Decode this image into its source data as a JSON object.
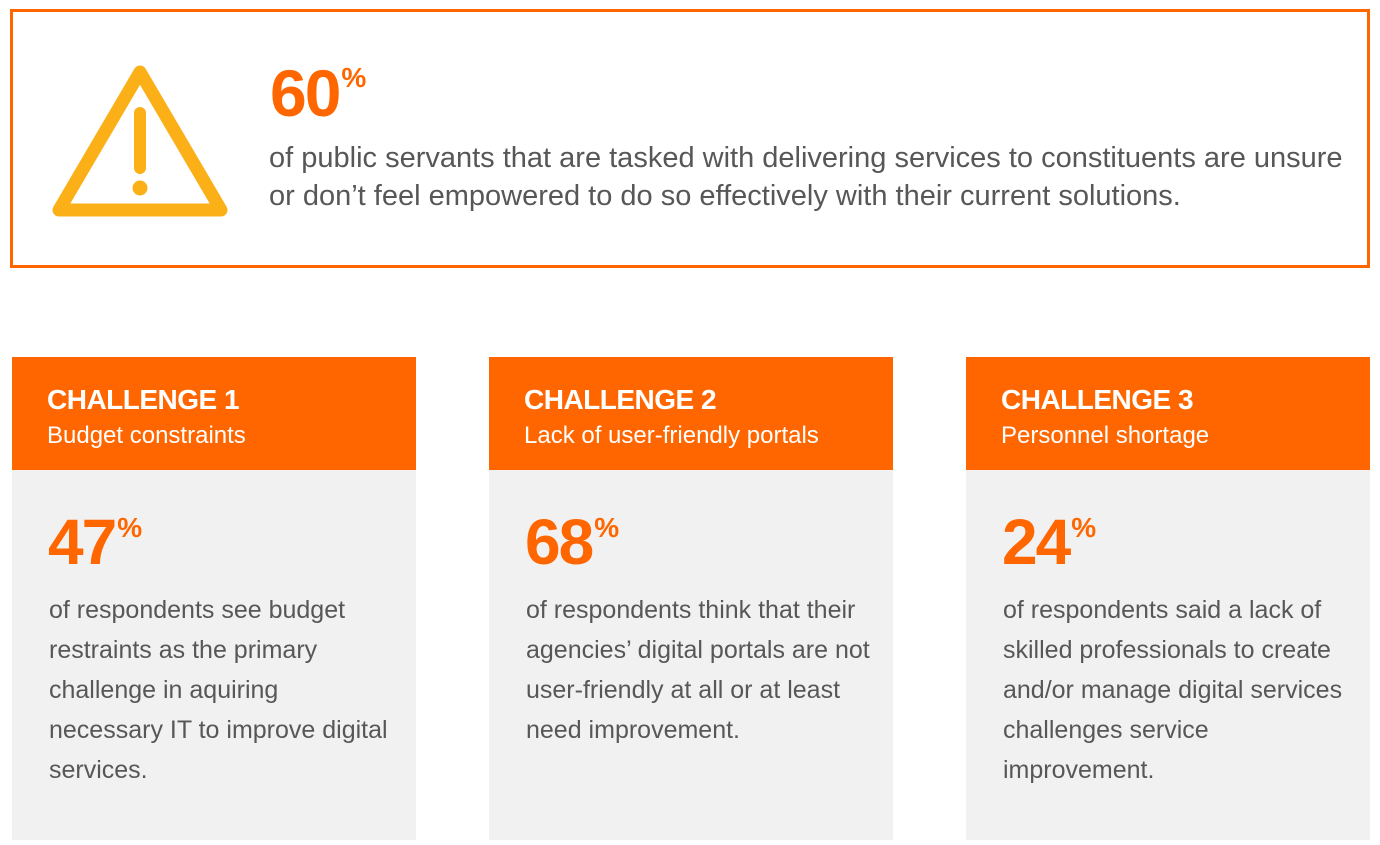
{
  "banner": {
    "icon": "warning-triangle-icon",
    "stat_value": "60",
    "stat_unit": "%",
    "text": "of public servants that are tasked with delivering services to constituents are unsure or don’t feel empowered to do so effectively with their current solutions."
  },
  "colors": {
    "accent": "#ff6600",
    "icon": "#fbb018",
    "card_bg": "#f1f1f1",
    "body_text": "#575757"
  },
  "cards": [
    {
      "title": "CHALLENGE 1",
      "subtitle": "Budget constraints",
      "stat_value": "47",
      "stat_unit": "%",
      "text": "of respondents see budget restraints as the primary challenge in aquiring necessary IT to improve digital services."
    },
    {
      "title": "CHALLENGE 2",
      "subtitle": "Lack of user-friendly portals",
      "stat_value": "68",
      "stat_unit": "%",
      "text": "of respondents think that their agencies’ digital portals are not user-friendly at all or at least need improvement."
    },
    {
      "title": "CHALLENGE 3",
      "subtitle": "Personnel shortage",
      "stat_value": "24",
      "stat_unit": "%",
      "text": "of respondents said a lack of skilled professionals to create and/or manage digital services challenges service improvement."
    }
  ]
}
